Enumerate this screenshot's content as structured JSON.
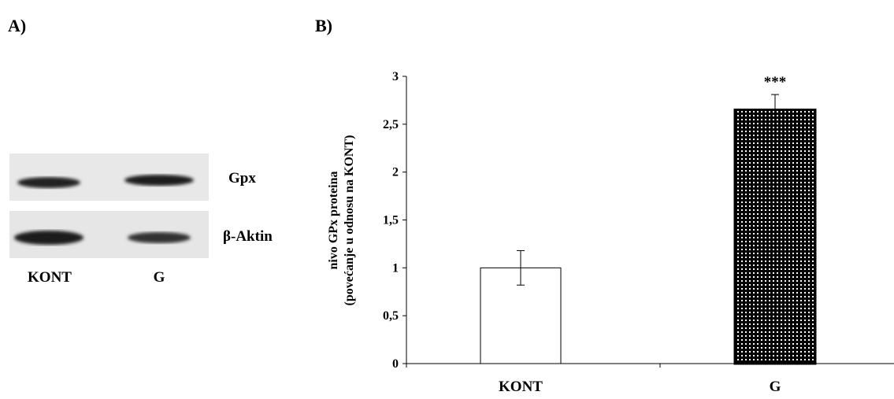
{
  "panel_a": {
    "label": "A)",
    "bands": [
      "Gpx",
      "β-Aktin"
    ],
    "lanes": [
      "KONT",
      "G"
    ]
  },
  "chart_data": {
    "type": "bar",
    "panel_label": "B)",
    "y_label": [
      "nivo GPx proteina",
      "(povećanje u odnosu na KONT)"
    ],
    "categories": [
      "KONT",
      "G"
    ],
    "values": [
      1,
      2.65
    ],
    "errors": [
      0.18,
      0.16
    ],
    "colors": [
      "#ffffff",
      "#000000"
    ],
    "patterned": [
      false,
      true
    ],
    "annotations": [
      {
        "x": "G",
        "text": "***"
      }
    ],
    "ylim": [
      0,
      3
    ],
    "yticks": [
      0,
      {
        "value": 0.5,
        "label": "0,5"
      },
      1,
      {
        "value": 1.5,
        "label": "1,5"
      },
      2,
      {
        "value": 2.5,
        "label": "2,5"
      },
      3
    ]
  }
}
